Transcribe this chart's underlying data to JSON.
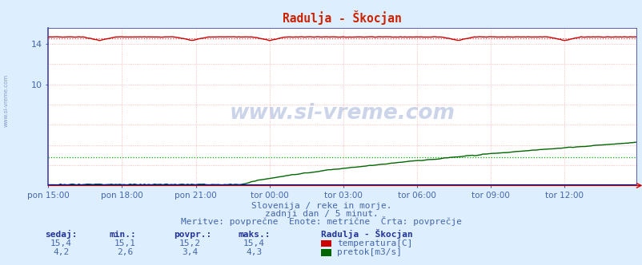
{
  "title": "Radulja - Škocjan",
  "bg_color": "#ddeeff",
  "plot_bg_color": "#ffffff",
  "grid_color": "#ffaaaa",
  "temp_color": "#cc0000",
  "temp_avg_color": "#dd4444",
  "flow_color": "#006600",
  "flow_avg_color": "#00aa00",
  "height_color": "#0000bb",
  "spine_color": "#4444aa",
  "tick_color": "#4466aa",
  "title_color": "#cc2200",
  "text_color": "#4466aa",
  "header_color": "#223399",
  "xlim": [
    0,
    287
  ],
  "ylim_max": 15.6,
  "ytick_vals": [
    14
  ],
  "ytick_extra": [
    10
  ],
  "xtick_labels": [
    "pon 15:00",
    "pon 18:00",
    "pon 21:00",
    "tor 00:00",
    "tor 03:00",
    "tor 06:00",
    "tor 09:00",
    "tor 12:00"
  ],
  "xtick_positions": [
    0,
    36,
    72,
    108,
    144,
    180,
    216,
    252
  ],
  "temp_base": 14.7,
  "temp_dip_positions": [
    25,
    70,
    108,
    200,
    252
  ],
  "temp_dip_depth": 0.35,
  "temp_avg_val": 14.6,
  "flow_avg_val": 2.8,
  "flow_ramp_start": 95,
  "flow_max_val": 4.3,
  "flow_start_val": 0.1,
  "temp_value": 15.4,
  "temp_min": 15.1,
  "temp_avg": 15.2,
  "temp_max": 15.4,
  "flow_value": 4.2,
  "flow_min": 2.6,
  "flow_avg_stat": 3.4,
  "flow_max": 4.3,
  "subtitle1": "Slovenija / reke in morje.",
  "subtitle2": "zadnji dan / 5 minut.",
  "subtitle3": "Meritve: povprečne  Enote: metrične  Črta: povprečje",
  "label_sedaj": "sedaj:",
  "label_min": "min.:",
  "label_povpr": "povpr.:",
  "label_maks": "maks.:",
  "station_label": "Radulja - Škocjan",
  "temp_label": "temperatura[C]",
  "flow_label": "pretok[m3/s]",
  "watermark": "www.si-vreme.com"
}
